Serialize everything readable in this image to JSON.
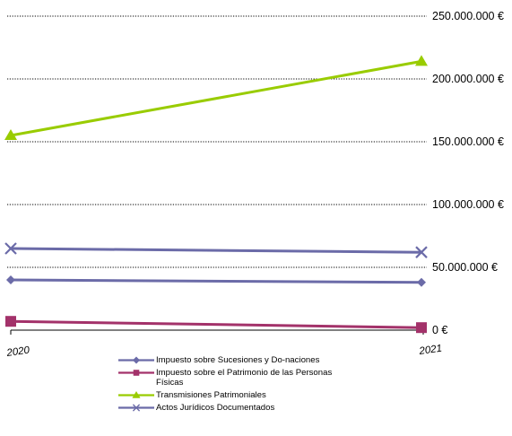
{
  "chart_data": {
    "type": "line",
    "categories": [
      "2020",
      "2021"
    ],
    "ylim": [
      0,
      250000000
    ],
    "yticks": [
      {
        "value": 0,
        "label": "0 €"
      },
      {
        "value": 50000000,
        "label": "50.000.000 €"
      },
      {
        "value": 100000000,
        "label": "100.000.000 €"
      },
      {
        "value": 150000000,
        "label": "150.000.000 €"
      },
      {
        "value": 200000000,
        "label": "200.000.000 €"
      },
      {
        "value": 250000000,
        "label": "250.000.000 €"
      }
    ],
    "grid": true,
    "legend_position": "bottom",
    "series": [
      {
        "name": "Impuesto sobre Sucesiones y Do-naciones",
        "values": [
          40000000,
          38000000
        ],
        "color": "#6b6ba8",
        "marker": "diamond"
      },
      {
        "name": "Impuesto sobre el Patrimonio de las Personas Físicas",
        "values": [
          7000000,
          2000000
        ],
        "color": "#a3326a",
        "marker": "square"
      },
      {
        "name": "Transmisiones Patrimoniales",
        "values": [
          155000000,
          214000000
        ],
        "color": "#99cc00",
        "marker": "triangle"
      },
      {
        "name": "Actos Jurídicos Documentados",
        "values": [
          65000000,
          62000000
        ],
        "color": "#6b6ba8",
        "marker": "x"
      }
    ]
  }
}
